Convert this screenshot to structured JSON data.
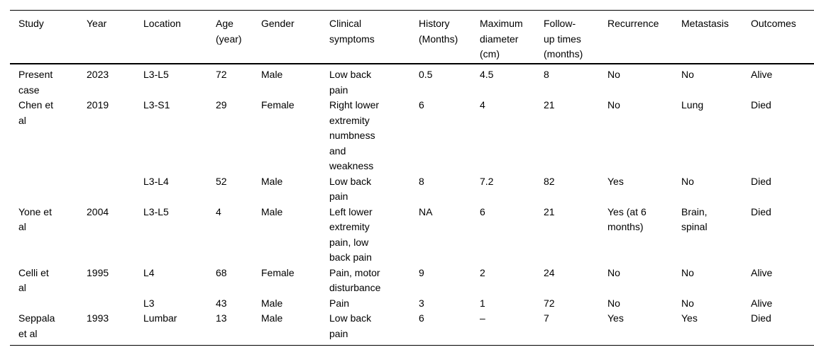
{
  "table": {
    "columns": [
      "Study",
      "Year",
      "Location",
      "Age (year)",
      "Gender",
      "Clinical symptoms",
      "History (Months)",
      "Maximum diameter (cm)",
      "Follow-up times (months)",
      "Recurrence",
      "Metastasis",
      "Outcomes"
    ],
    "rows": [
      [
        "Present case",
        "2023",
        "L3-L5",
        "72",
        "Male",
        "Low back pain",
        "0.5",
        "4.5",
        "8",
        "No",
        "No",
        "Alive"
      ],
      [
        "Chen et al",
        "2019",
        "L3-S1",
        "29",
        "Female",
        "Right lower extremity numbness and weakness",
        "6",
        "4",
        "21",
        "No",
        "Lung",
        "Died"
      ],
      [
        "",
        "",
        "L3-L4",
        "52",
        "Male",
        "Low back pain",
        "8",
        "7.2",
        "82",
        "Yes",
        "No",
        "Died"
      ],
      [
        "Yone et al",
        "2004",
        "L3-L5",
        "4",
        "Male",
        "Left lower extremity pain, low back pain",
        "NA",
        "6",
        "21",
        "Yes (at 6 months)",
        "Brain, spinal",
        "Died"
      ],
      [
        "Celli et al",
        "1995",
        "L4",
        "68",
        "Female",
        "Pain, motor disturbance",
        "9",
        "2",
        "24",
        "No",
        "No",
        "Alive"
      ],
      [
        "",
        "",
        "L3",
        "43",
        "Male",
        "Pain",
        "3",
        "1",
        "72",
        "No",
        "No",
        "Alive"
      ],
      [
        "Seppala et al",
        "1993",
        "Lumbar",
        "13",
        "Male",
        "Low back pain",
        "6",
        "–",
        "7",
        "Yes",
        "Yes",
        "Died"
      ]
    ],
    "colors": {
      "background": "#ffffff",
      "text": "#000000",
      "rule": "#000000"
    }
  }
}
